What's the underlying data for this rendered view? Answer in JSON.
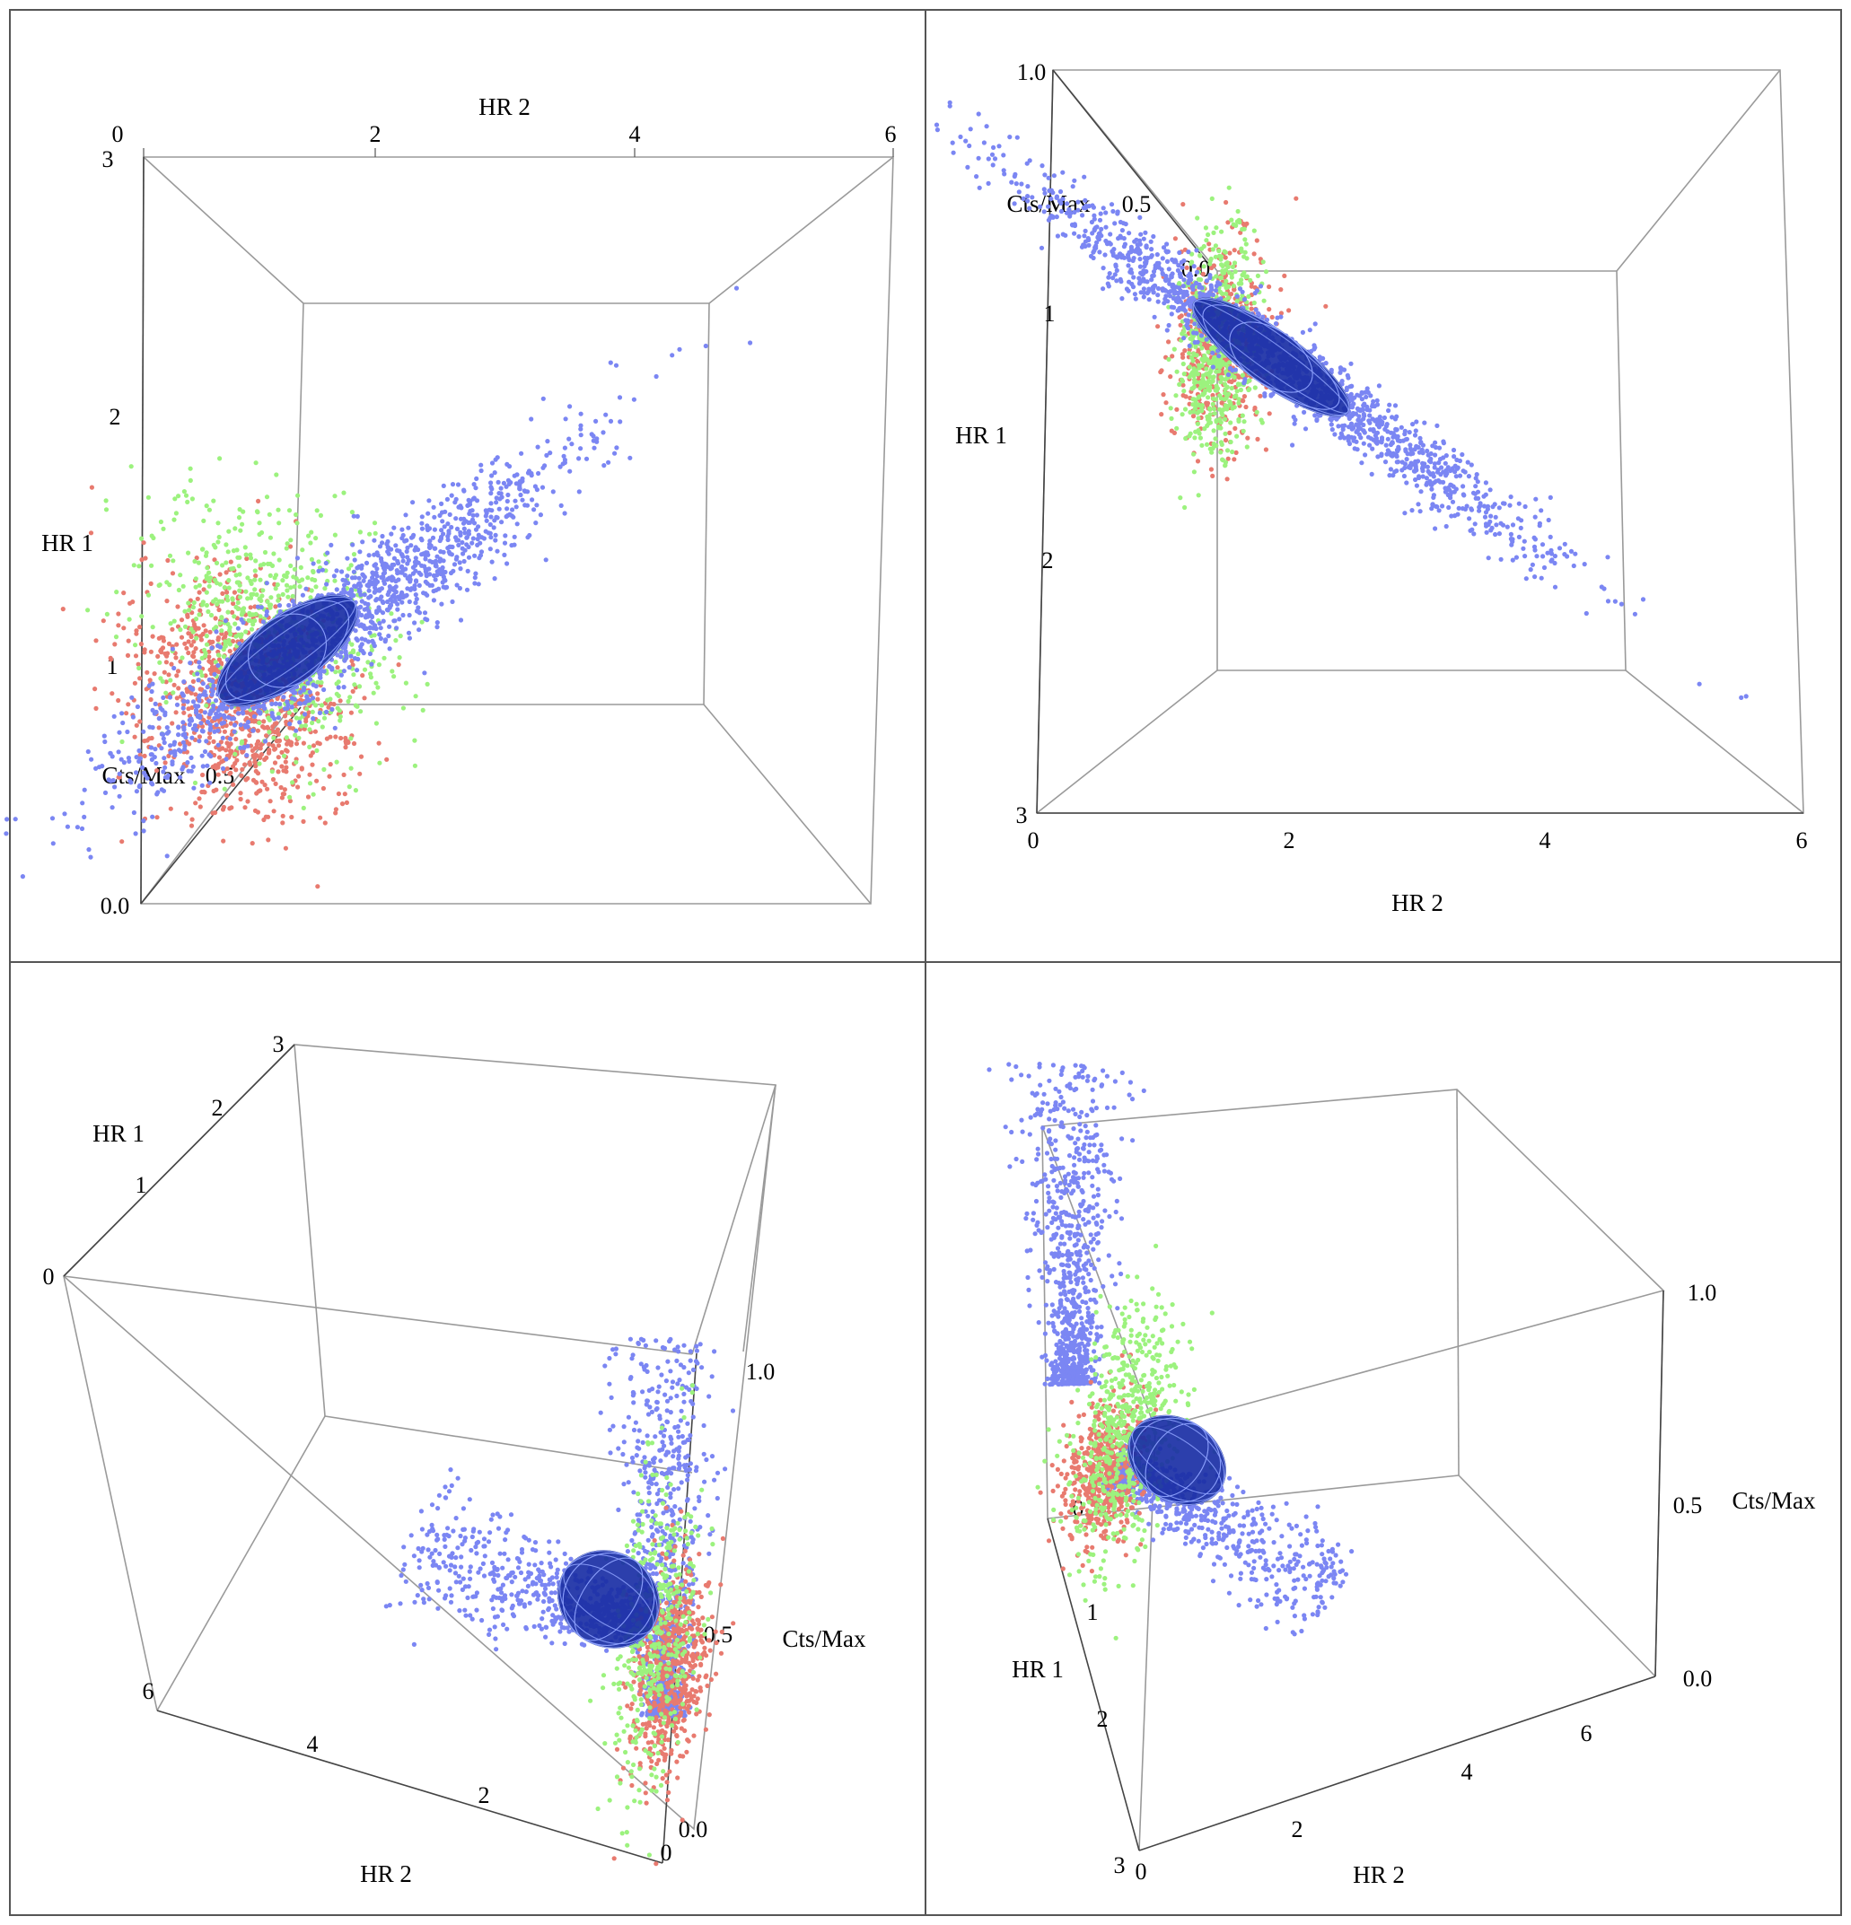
{
  "chart_data": [
    {
      "type": "scatter3d",
      "panel": "top-left",
      "view": "view along HR 1 / HR 2 face",
      "axes": {
        "HR2": {
          "label": "HR 2",
          "ticks": [
            "0",
            "2",
            "4",
            "6"
          ],
          "range": [
            0,
            6
          ]
        },
        "HR1": {
          "label": "HR 1",
          "ticks": [
            "1",
            "2",
            "3"
          ],
          "range": [
            0,
            3
          ]
        },
        "Cts": {
          "label": "Cts/Max",
          "ticks": [
            "0.0",
            "0.5"
          ],
          "range": [
            0,
            1
          ]
        }
      },
      "series": [
        {
          "name": "red",
          "color": "#e87a6f",
          "center": {
            "HR2": 0.7,
            "HR1": 0.65
          }
        },
        {
          "name": "green",
          "color": "#9cf27e",
          "center": {
            "HR2": 0.95,
            "HR1": 0.85
          }
        },
        {
          "name": "blue",
          "color": "#7b86f3",
          "center": {
            "HR2": 1.7,
            "HR1": 1.05
          }
        },
        {
          "name": "ellipsoid",
          "color": "#1a2fa5"
        }
      ]
    },
    {
      "type": "scatter3d",
      "panel": "top-right",
      "view": "view along Cts/Max",
      "axes": {
        "HR2": {
          "label": "HR 2",
          "ticks": [
            "0",
            "2",
            "4",
            "6"
          ],
          "range": [
            0,
            6
          ]
        },
        "HR1": {
          "label": "HR 1",
          "ticks": [
            "1",
            "2",
            "3"
          ],
          "range": [
            0,
            3
          ]
        },
        "Cts": {
          "label": "Cts/Max",
          "ticks": [
            "0.5",
            "0.0",
            "1.0"
          ],
          "range": [
            0,
            1
          ]
        }
      },
      "series": [
        {
          "name": "red",
          "color": "#e87a6f",
          "center": {
            "HR2": 1.4,
            "HR1": 1.2
          }
        },
        {
          "name": "green",
          "color": "#9cf27e",
          "center": {
            "HR2": 1.4,
            "HR1": 1.25
          }
        },
        {
          "name": "blue",
          "color": "#7b86f3",
          "center": {
            "HR2": 2.0,
            "HR1": 1.3
          }
        },
        {
          "name": "ellipsoid",
          "color": "#1a2fa5"
        }
      ]
    },
    {
      "type": "scatter3d",
      "panel": "bottom-left",
      "view": "oblique, Cts/Max vertical",
      "axes": {
        "HR2": {
          "label": "HR 2",
          "ticks": [
            "0",
            "2",
            "4",
            "6"
          ],
          "range": [
            0,
            6
          ]
        },
        "HR1": {
          "label": "HR 1",
          "ticks": [
            "0",
            "1",
            "2",
            "3"
          ],
          "range": [
            0,
            3
          ]
        },
        "Cts": {
          "label": "Cts/Max",
          "ticks": [
            "0.0",
            "0.5",
            "1.0"
          ],
          "range": [
            0,
            1
          ]
        }
      },
      "series": [
        {
          "name": "red",
          "color": "#e87a6f"
        },
        {
          "name": "green",
          "color": "#9cf27e"
        },
        {
          "name": "blue",
          "color": "#7b86f3"
        },
        {
          "name": "ellipsoid",
          "color": "#1a2fa5"
        }
      ]
    },
    {
      "type": "scatter3d",
      "panel": "bottom-right",
      "view": "oblique, from below",
      "axes": {
        "HR2": {
          "label": "HR 2",
          "ticks": [
            "0",
            "2",
            "4",
            "6"
          ],
          "range": [
            0,
            6
          ]
        },
        "HR1": {
          "label": "HR 1",
          "ticks": [
            "0",
            "1",
            "2",
            "3"
          ],
          "range": [
            0,
            3
          ]
        },
        "Cts": {
          "label": "Cts/Max",
          "ticks": [
            "0.0",
            "0.5",
            "1.0"
          ],
          "range": [
            0,
            1
          ]
        }
      },
      "series": [
        {
          "name": "red",
          "color": "#e87a6f"
        },
        {
          "name": "green",
          "color": "#9cf27e"
        },
        {
          "name": "blue",
          "color": "#7b86f3"
        },
        {
          "name": "ellipsoid",
          "color": "#1a2fa5"
        }
      ]
    }
  ],
  "colors": {
    "red": "#e87a6f",
    "green": "#9cf27e",
    "blue": "#7b86f3",
    "ellipsoid": "#1a2fa5",
    "ellipsoid_grid": "#8fa3ff",
    "frame": "#9a9a9a",
    "border": "#555555"
  }
}
